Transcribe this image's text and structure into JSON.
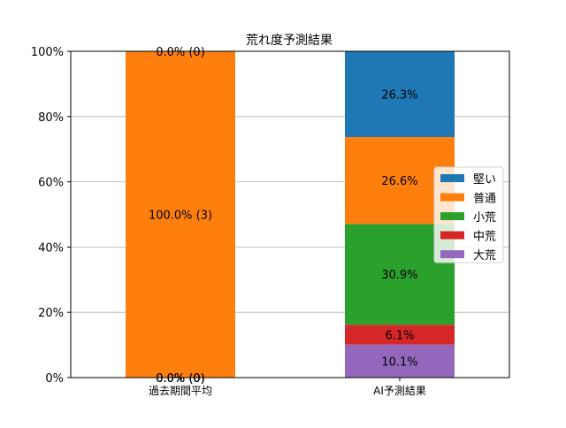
{
  "chart_data": {
    "type": "bar",
    "stacked": true,
    "title": "荒れ度予測結果",
    "xlabel": "",
    "ylabel": "",
    "ylim": [
      0,
      100
    ],
    "y_tick_labels": [
      "0%",
      "20%",
      "40%",
      "60%",
      "80%",
      "100%"
    ],
    "y_tick_values": [
      0,
      20,
      40,
      60,
      80,
      100
    ],
    "categories": [
      "過去期間平均",
      "AI予測結果"
    ],
    "grid": "horizontal",
    "legend_position": "right",
    "series": [
      {
        "name": "大荒",
        "color": "#9467bd",
        "values": [
          0,
          10.1
        ],
        "labels": [
          "0.0% (0)",
          "10.1%"
        ]
      },
      {
        "name": "中荒",
        "color": "#d62728",
        "values": [
          0,
          6.1
        ],
        "labels": [
          "0.0% (0)",
          "6.1%"
        ]
      },
      {
        "name": "小荒",
        "color": "#2ca02c",
        "values": [
          0,
          30.9
        ],
        "labels": [
          "0.0% (0)",
          "30.9%"
        ]
      },
      {
        "name": "普通",
        "color": "#ff7f0e",
        "values": [
          100,
          26.6
        ],
        "labels": [
          "100.0% (3)",
          "26.6%"
        ]
      },
      {
        "name": "堅い",
        "color": "#1f77b4",
        "values": [
          0,
          26.3
        ],
        "labels": [
          "0.0% (0)",
          "26.3%"
        ]
      }
    ],
    "legend_order": [
      "堅い",
      "普通",
      "小荒",
      "中荒",
      "大荒"
    ]
  }
}
